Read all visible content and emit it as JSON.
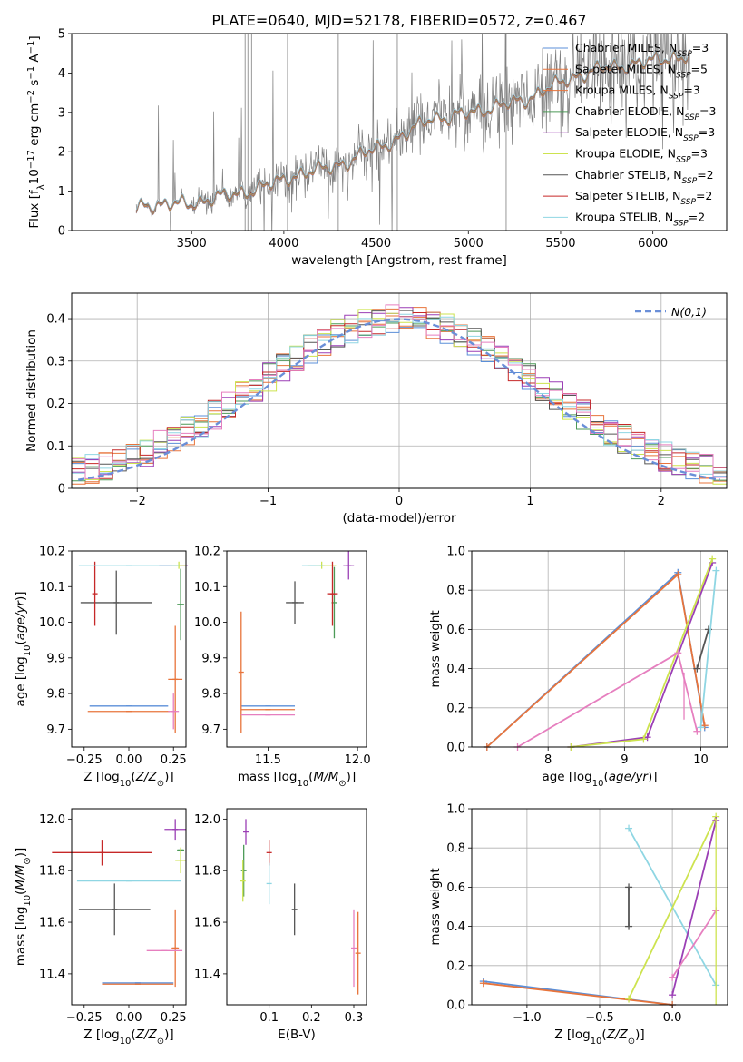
{
  "page_title": "PLATE=0640, MJD=52178, FIBERID=0572, z=0.467",
  "colors": {
    "Chabrier MILES": "#5b8fd8",
    "Salpeter MILES": "#e8743b",
    "Kroupa MILES": "#e8743b",
    "Chabrier ELODIE": "#4c9a57",
    "Salpeter ELODIE": "#9b3fb5",
    "Kroupa ELODIE": "#cde34f",
    "Chabrier STELIB": "#555555",
    "Salpeter STELIB": "#c62828",
    "Kroupa STELIB": "#8fd6e3",
    "Pink": "#e67fbf",
    "Data": "#7f7f7f",
    "Normal": "#6a8fd8"
  },
  "chart_data": [
    {
      "id": "spectrum",
      "type": "line",
      "title": "PLATE=0640, MJD=52178, FIBERID=0572, z=0.467",
      "xlabel": "wavelength [Angstrom, rest frame]",
      "ylabel": "Flux [f_λ 10^-17 erg cm^-2 s^-1 A^-1]",
      "xlim": [
        2850,
        6400
      ],
      "ylim": [
        0,
        5
      ],
      "xticks": [
        3500,
        4000,
        4500,
        5000,
        5500,
        6000
      ],
      "yticks": [
        0,
        1,
        2,
        3,
        4,
        5
      ],
      "legend_position": "top-right",
      "legend": [
        {
          "model": "Chabrier MILES",
          "label": "Chabrier MILES, N",
          "sub": "SSP",
          "tail": "=3"
        },
        {
          "model": "Salpeter MILES",
          "label": "Salpeter MILES, N",
          "sub": "SSP",
          "tail": "=5"
        },
        {
          "model": "Kroupa MILES",
          "label": "Kroupa MILES, N",
          "sub": "SSP",
          "tail": "=3"
        },
        {
          "model": "Chabrier ELODIE",
          "label": "Chabrier ELODIE, N",
          "sub": "SSP",
          "tail": "=3"
        },
        {
          "model": "Salpeter ELODIE",
          "label": "Salpeter ELODIE, N",
          "sub": "SSP",
          "tail": "=3"
        },
        {
          "model": "Kroupa ELODIE",
          "label": "Kroupa ELODIE, N",
          "sub": "SSP",
          "tail": "=3"
        },
        {
          "model": "Chabrier STELIB",
          "label": "Chabrier STELIB, N",
          "sub": "SSP",
          "tail": "=2"
        },
        {
          "model": "Salpeter STELIB",
          "label": "Salpeter STELIB, N",
          "sub": "SSP",
          "tail": "=2"
        },
        {
          "model": "Kroupa STELIB",
          "label": "Kroupa STELIB, N",
          "sub": "SSP",
          "tail": "=2"
        }
      ],
      "continuum": [
        [
          3200,
          0.55
        ],
        [
          3250,
          0.68
        ],
        [
          3350,
          0.65
        ],
        [
          3500,
          0.7
        ],
        [
          3650,
          0.85
        ],
        [
          3800,
          1.0
        ],
        [
          3950,
          1.2
        ],
        [
          4050,
          1.4
        ],
        [
          4200,
          1.55
        ],
        [
          4350,
          1.75
        ],
        [
          4500,
          2.1
        ],
        [
          4650,
          2.4
        ],
        [
          4800,
          2.9
        ],
        [
          4900,
          2.85
        ],
        [
          5000,
          3.0
        ],
        [
          5100,
          3.1
        ],
        [
          5200,
          3.2
        ],
        [
          5300,
          3.3
        ],
        [
          5400,
          3.55
        ],
        [
          5500,
          3.75
        ],
        [
          5600,
          3.95
        ],
        [
          5700,
          4.1
        ],
        [
          5800,
          4.15
        ],
        [
          5900,
          4.25
        ],
        [
          6000,
          4.3
        ],
        [
          6100,
          4.4
        ],
        [
          6200,
          4.45
        ]
      ]
    },
    {
      "id": "residuals",
      "type": "step",
      "xlabel": "(data-model)/error",
      "ylabel": "Normed distribution",
      "xlim": [
        -2.5,
        2.5
      ],
      "ylim": [
        0,
        0.46
      ],
      "xticks": [
        -2,
        -1,
        0,
        1,
        2
      ],
      "yticks": [
        0.0,
        0.1,
        0.2,
        0.3,
        0.4
      ],
      "legend": {
        "label": "N(0,1)",
        "position": "top-right"
      },
      "grid": true
    },
    {
      "id": "age-vs-Z",
      "type": "errorbar",
      "xlabel": "Z [log10(Z/Z⊙)]",
      "ylabel": "age [log10(age/yr)]",
      "xlim": [
        -0.32,
        0.32
      ],
      "ylim": [
        9.65,
        10.2
      ],
      "xticks": [
        "-0.25",
        "0.00",
        "0.25"
      ],
      "yticks": [
        "9.7",
        "9.8",
        "9.9",
        "10.0",
        "10.1",
        "10.2"
      ],
      "points": [
        {
          "model": "Chabrier MILES",
          "x": 0.0,
          "xerr": 0.22,
          "y": 9.765,
          "yerr": 0.0
        },
        {
          "model": "Salpeter MILES",
          "x": 0.26,
          "xerr": 0.04,
          "y": 9.84,
          "yerr": 0.15
        },
        {
          "model": "Kroupa MILES",
          "x": 0.0,
          "xerr": 0.23,
          "y": 9.75,
          "yerr": 0.0
        },
        {
          "model": "Chabrier ELODIE",
          "x": 0.29,
          "xerr": 0.02,
          "y": 10.05,
          "yerr": 0.1
        },
        {
          "model": "Salpeter ELODIE",
          "x": 0.25,
          "xerr": 0.08,
          "y": 10.16,
          "yerr": 0.0
        },
        {
          "model": "Kroupa ELODIE",
          "x": 0.28,
          "xerr": 0.04,
          "y": 10.16,
          "yerr": 0.01
        },
        {
          "model": "Chabrier STELIB",
          "x": -0.07,
          "xerr": 0.2,
          "y": 10.055,
          "yerr": 0.09
        },
        {
          "model": "Salpeter STELIB",
          "x": -0.19,
          "xerr": 0.0,
          "y": 10.08,
          "yerr": 0.09
        },
        {
          "model": "Kroupa STELIB",
          "x": 0.0,
          "xerr": 0.28,
          "y": 10.16,
          "yerr": 0.0
        },
        {
          "model": "Pink",
          "x": 0.25,
          "xerr": 0.03,
          "y": 9.75,
          "yerr": 0.05
        }
      ]
    },
    {
      "id": "age-vs-mass",
      "type": "errorbar",
      "xlabel": "mass [log10(M/M⊙)]",
      "ylabel": "",
      "xlim": [
        11.27,
        12.05
      ],
      "ylim": [
        9.65,
        10.2
      ],
      "xticks": [
        "11.5",
        "12.0"
      ],
      "yticks": [
        "9.7",
        "9.8",
        "9.9",
        "10.0",
        "10.1",
        "10.2"
      ],
      "points": [
        {
          "model": "Chabrier MILES",
          "x": 11.5,
          "xerr": 0.15,
          "y": 9.765,
          "yerr": 0.0
        },
        {
          "model": "Salpeter MILES",
          "x": 11.35,
          "xerr": 0.0,
          "y": 9.86,
          "yerr": 0.17
        },
        {
          "model": "Kroupa MILES",
          "x": 11.5,
          "xerr": 0.15,
          "y": 9.755,
          "yerr": 0.0
        },
        {
          "model": "Chabrier ELODIE",
          "x": 11.87,
          "xerr": 0.0,
          "y": 10.055,
          "yerr": 0.1
        },
        {
          "model": "Salpeter ELODIE",
          "x": 11.95,
          "xerr": 0.03,
          "y": 10.16,
          "yerr": 0.04
        },
        {
          "model": "Kroupa ELODIE",
          "x": 11.8,
          "xerr": 0.08,
          "y": 10.16,
          "yerr": 0.01
        },
        {
          "model": "Chabrier STELIB",
          "x": 11.65,
          "xerr": 0.05,
          "y": 10.055,
          "yerr": 0.06
        },
        {
          "model": "Salpeter STELIB",
          "x": 11.86,
          "xerr": 0.03,
          "y": 10.08,
          "yerr": 0.09
        },
        {
          "model": "Kroupa STELIB",
          "x": 11.75,
          "xerr": 0.06,
          "y": 10.16,
          "yerr": 0.0
        },
        {
          "model": "Pink",
          "x": 11.5,
          "xerr": 0.15,
          "y": 9.74,
          "yerr": 0.0
        }
      ]
    },
    {
      "id": "mass-weight-vs-age",
      "type": "line",
      "xlabel": "age [log10(age/yr)]",
      "ylabel": "mass weight",
      "xlim": [
        7.0,
        10.35
      ],
      "ylim": [
        0,
        1
      ],
      "xticks": [
        "8",
        "9",
        "10"
      ],
      "yticks": [
        "0.0",
        "0.2",
        "0.4",
        "0.6",
        "0.8",
        "1.0"
      ],
      "grid": true,
      "series": [
        {
          "model": "Chabrier MILES",
          "x": [
            7.2,
            9.7,
            10.05
          ],
          "y": [
            0.0,
            0.89,
            0.1
          ]
        },
        {
          "model": "Salpeter MILES",
          "x": [
            7.2,
            9.7,
            10.05
          ],
          "y": [
            0.0,
            0.88,
            0.11
          ]
        },
        {
          "model": "Salpeter ELODIE",
          "x": [
            8.3,
            9.3,
            10.15
          ],
          "y": [
            0.0,
            0.05,
            0.94
          ]
        },
        {
          "model": "Kroupa ELODIE",
          "x": [
            8.3,
            9.25,
            10.15
          ],
          "y": [
            0.0,
            0.04,
            0.96
          ]
        },
        {
          "model": "Chabrier STELIB",
          "x": [
            9.95,
            10.1
          ],
          "y": [
            0.4,
            0.6
          ]
        },
        {
          "model": "Kroupa STELIB",
          "x": [
            10.0,
            10.2
          ],
          "y": [
            0.1,
            0.9
          ]
        },
        {
          "model": "Pink",
          "x": [
            7.6,
            9.7,
            9.95
          ],
          "y": [
            0.0,
            0.48,
            0.08
          ]
        }
      ]
    },
    {
      "id": "mass-vs-Z",
      "type": "errorbar",
      "xlabel": "Z [log10(Z/Z⊙)]",
      "ylabel": "mass [log10(M/M⊙)]",
      "xlim": [
        -0.32,
        0.32
      ],
      "ylim": [
        11.28,
        12.04
      ],
      "xticks": [
        "-0.25",
        "0.00",
        "0.25"
      ],
      "yticks": [
        "11.4",
        "11.6",
        "11.8",
        "12.0"
      ],
      "points": [
        {
          "model": "Chabrier MILES",
          "x": 0.05,
          "xerr": 0.2,
          "y": 11.365,
          "yerr": 0.0
        },
        {
          "model": "Salpeter MILES",
          "x": 0.26,
          "xerr": 0.02,
          "y": 11.5,
          "yerr": 0.15
        },
        {
          "model": "Kroupa MILES",
          "x": 0.05,
          "xerr": 0.2,
          "y": 11.36,
          "yerr": 0.0
        },
        {
          "model": "Chabrier ELODIE",
          "x": 0.29,
          "xerr": 0.02,
          "y": 11.88,
          "yerr": 0.0
        },
        {
          "model": "Salpeter ELODIE",
          "x": 0.26,
          "xerr": 0.06,
          "y": 11.96,
          "yerr": 0.04
        },
        {
          "model": "Kroupa ELODIE",
          "x": 0.29,
          "xerr": 0.03,
          "y": 11.84,
          "yerr": 0.05
        },
        {
          "model": "Chabrier STELIB",
          "x": -0.08,
          "xerr": 0.2,
          "y": 11.65,
          "yerr": 0.1
        },
        {
          "model": "Salpeter STELIB",
          "x": -0.15,
          "xerr": 0.28,
          "y": 11.87,
          "yerr": 0.05
        },
        {
          "model": "Kroupa STELIB",
          "x": 0.0,
          "xerr": 0.29,
          "y": 11.76,
          "yerr": 0.0
        },
        {
          "model": "Pink",
          "x": 0.2,
          "xerr": 0.1,
          "y": 11.49,
          "yerr": 0.0
        }
      ]
    },
    {
      "id": "mass-vs-EBV",
      "type": "errorbar",
      "xlabel": "E(B-V)",
      "ylabel": "",
      "xlim": [
        0.0,
        0.33
      ],
      "ylim": [
        11.28,
        12.04
      ],
      "xticks": [
        "0.1",
        "0.2",
        "0.3"
      ],
      "yticks": [
        "11.4",
        "11.6",
        "11.8",
        "12.0"
      ],
      "points": [
        {
          "model": "Salpeter ELODIE",
          "x": 0.045,
          "y": 11.95,
          "yerr": 0.05
        },
        {
          "model": "Chabrier ELODIE",
          "x": 0.04,
          "y": 11.8,
          "yerr": 0.1
        },
        {
          "model": "Kroupa ELODIE",
          "x": 0.038,
          "y": 11.76,
          "yerr": 0.08
        },
        {
          "model": "Salpeter STELIB",
          "x": 0.1,
          "y": 11.87,
          "yerr": 0.05
        },
        {
          "model": "Kroupa STELIB",
          "x": 0.1,
          "y": 11.75,
          "yerr": 0.08
        },
        {
          "model": "Chabrier STELIB",
          "x": 0.16,
          "y": 11.65,
          "yerr": 0.1
        },
        {
          "model": "Pink",
          "x": 0.3,
          "y": 11.5,
          "yerr": 0.15
        },
        {
          "model": "Salpeter MILES",
          "x": 0.31,
          "y": 11.48,
          "yerr": 0.16
        }
      ]
    },
    {
      "id": "mass-weight-vs-Z",
      "type": "line",
      "xlabel": "Z [log10(Z/Z⊙)]",
      "ylabel": "mass weight",
      "xlim": [
        -1.38,
        0.38
      ],
      "ylim": [
        0,
        1
      ],
      "xticks": [
        "-1.0",
        "-0.5",
        "0.0"
      ],
      "yticks": [
        "0.0",
        "0.2",
        "0.4",
        "0.6",
        "0.8",
        "1.0"
      ],
      "grid": true,
      "series": [
        {
          "model": "Chabrier MILES",
          "x": [
            -1.3,
            0.0
          ],
          "y": [
            0.12,
            0.0
          ]
        },
        {
          "model": "Salpeter MILES",
          "x": [
            -1.3,
            0.0
          ],
          "y": [
            0.11,
            0.0
          ]
        },
        {
          "model": "Kroupa STELIB",
          "x": [
            -0.3,
            0.3
          ],
          "y": [
            0.9,
            0.1
          ]
        },
        {
          "model": "Kroupa ELODIE",
          "x": [
            -0.3,
            0.3
          ],
          "y": [
            0.03,
            0.96
          ]
        },
        {
          "model": "Salpeter ELODIE",
          "x": [
            0.0,
            0.3
          ],
          "y": [
            0.05,
            0.94
          ]
        },
        {
          "model": "Pink",
          "x": [
            0.0,
            0.3
          ],
          "y": [
            0.14,
            0.48
          ]
        },
        {
          "model": "Chabrier STELIB",
          "x": [
            -0.3,
            -0.3
          ],
          "y": [
            0.4,
            0.6
          ]
        }
      ]
    }
  ]
}
